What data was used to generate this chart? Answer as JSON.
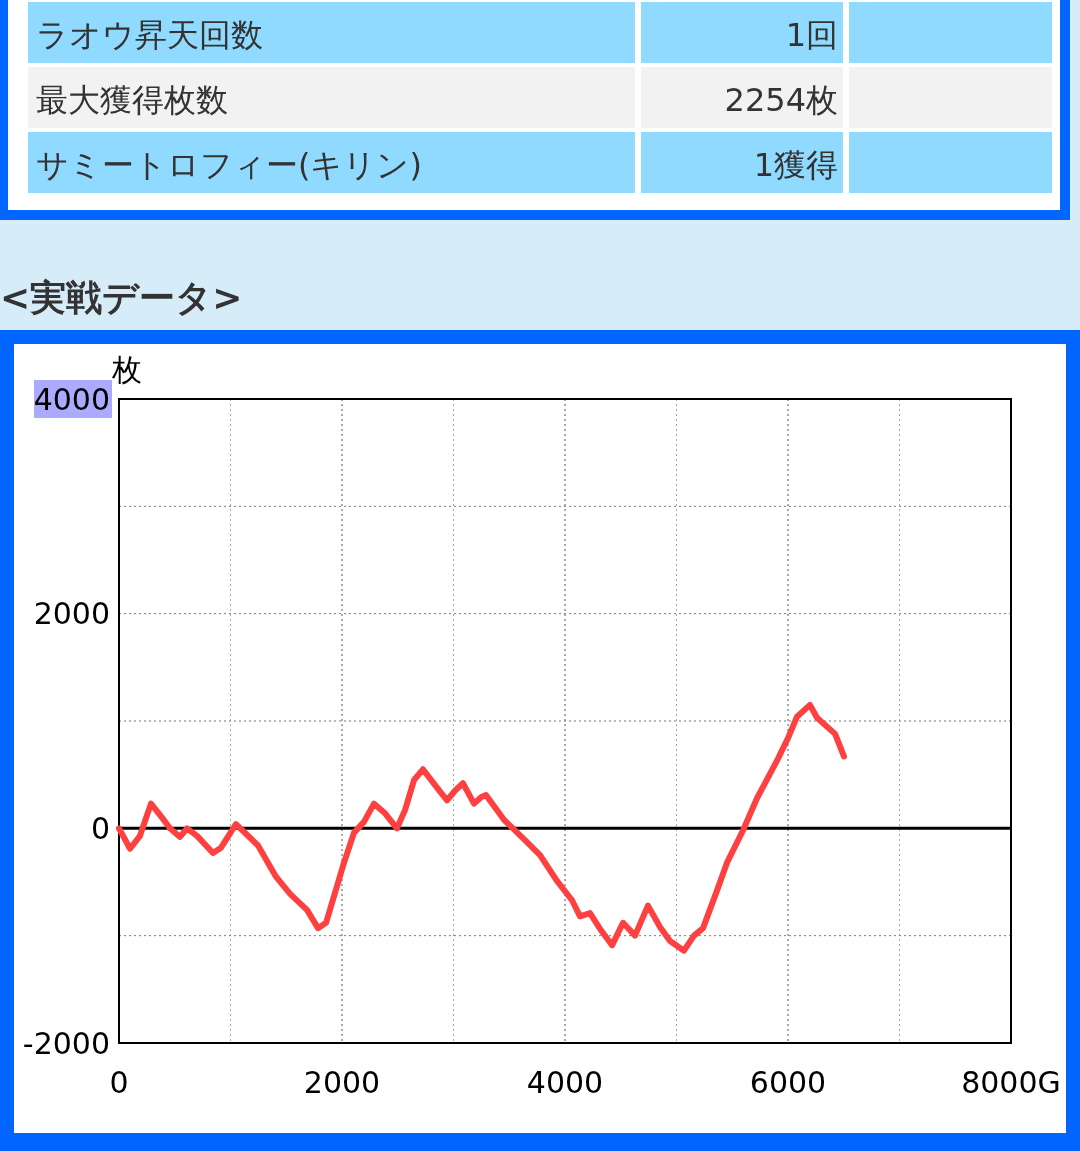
{
  "chart_data": {
    "type": "line",
    "title": "<実戦データ>",
    "annotations": [
      "ラオウ昇天回数",
      "1回",
      "最大獲得枚数",
      "2254枚",
      "サミートロフィー(キリン)",
      "1獲得"
    ],
    "ylabel": "枚",
    "x": [
      0,
      99,
      188,
      287,
      386,
      457,
      547,
      610,
      700,
      843,
      915,
      1049,
      1247,
      1408,
      1534,
      1686,
      1785,
      1857,
      2018,
      2108,
      2197,
      2287,
      2386,
      2493,
      2565,
      2646,
      2726,
      2852,
      2942,
      3013,
      3085,
      3184,
      3247,
      3291,
      3453,
      3641,
      3776,
      3928,
      4063,
      4135,
      4224,
      4323,
      4422,
      4520,
      4628,
      4744,
      4852,
      4942,
      5067,
      5157,
      5238,
      5363,
      5453,
      5596,
      5722,
      5901,
      6000,
      6081,
      6197,
      6260,
      6422,
      6502
    ],
    "series": [
      {
        "color": "#ff4040",
        "values": [
          0,
          -190,
          -70,
          230,
          100,
          0,
          -80,
          0,
          -70,
          -230,
          -180,
          40,
          -160,
          -450,
          -610,
          -760,
          -930,
          -880,
          -320,
          -40,
          60,
          230,
          140,
          0,
          170,
          450,
          550,
          380,
          260,
          350,
          420,
          230,
          290,
          310,
          80,
          -110,
          -250,
          -490,
          -670,
          -820,
          -790,
          -950,
          -1090,
          -880,
          -1000,
          -720,
          -920,
          -1050,
          -1140,
          -1000,
          -930,
          -580,
          -320,
          -20,
          280,
          630,
          840,
          1040,
          1150,
          1030,
          880,
          670
        ]
      }
    ],
    "xlim": [
      0,
      8000
    ],
    "ylim": [
      -2000,
      4000
    ],
    "xticks": [
      0,
      {
        "value": 1000,
        "label": null
      },
      2000,
      {
        "value": 3000,
        "label": null
      },
      4000,
      {
        "value": 5000,
        "label": null
      },
      6000,
      {
        "value": 7000,
        "label": null
      },
      {
        "value": 8000,
        "label": "8000G"
      }
    ],
    "yticks": [
      -2000,
      {
        "value": -1000,
        "label": null
      },
      0,
      {
        "value": 1000,
        "label": null
      },
      2000,
      {
        "value": 3000,
        "label": null
      },
      4000
    ],
    "ref_lines": [
      {
        "axis": "y",
        "value": 0,
        "color": "#000000"
      }
    ],
    "grid": true,
    "marker": "none",
    "line_style": "solid"
  }
}
